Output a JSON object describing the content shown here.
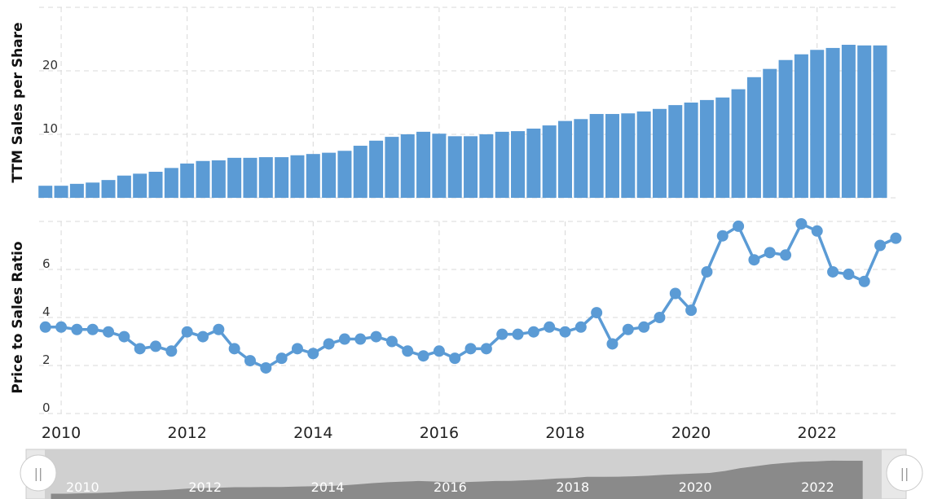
{
  "chart_data": [
    {
      "type": "bar",
      "y_label": "TTM Sales per Share",
      "color": "#5b9bd5",
      "x": [
        2009.75,
        2010,
        2010.25,
        2010.5,
        2010.75,
        2011,
        2011.25,
        2011.5,
        2011.75,
        2012,
        2012.25,
        2012.5,
        2012.75,
        2013,
        2013.25,
        2013.5,
        2013.75,
        2014,
        2014.25,
        2014.5,
        2014.75,
        2015,
        2015.25,
        2015.5,
        2015.75,
        2016,
        2016.25,
        2016.5,
        2016.75,
        2017,
        2017.25,
        2017.5,
        2017.75,
        2018,
        2018.25,
        2018.5,
        2018.75,
        2019,
        2019.25,
        2019.5,
        2019.75,
        2020,
        2020.25,
        2020.5,
        2020.75,
        2021,
        2021.25,
        2021.5,
        2021.75,
        2022,
        2022.25,
        2022.5,
        2022.75,
        2023
      ],
      "values": [
        1.9,
        1.9,
        2.2,
        2.4,
        2.8,
        3.5,
        3.8,
        4.1,
        4.7,
        5.4,
        5.8,
        5.9,
        6.3,
        6.3,
        6.4,
        6.4,
        6.7,
        6.9,
        7.1,
        7.4,
        8.2,
        9.0,
        9.6,
        10.0,
        10.4,
        10.1,
        9.7,
        9.7,
        10.0,
        10.4,
        10.5,
        10.9,
        11.4,
        12.1,
        12.4,
        13.2,
        13.2,
        13.3,
        13.6,
        14.0,
        14.6,
        15.0,
        15.4,
        15.8,
        17.1,
        19.0,
        20.3,
        21.7,
        22.6,
        23.3,
        23.6,
        24.1,
        24.0,
        24.0
      ],
      "xlim": [
        2009.65,
        2023.31
      ],
      "xticks": [
        2010,
        2012,
        2014,
        2016,
        2018,
        2020,
        2022
      ],
      "ylim": [
        0,
        30
      ],
      "yticks": [
        0,
        10,
        20
      ],
      "grid": true
    },
    {
      "type": "line",
      "y_label": "Price to Sales Ratio",
      "color": "#5b9bd5",
      "x": [
        2009.75,
        2010,
        2010.25,
        2010.5,
        2010.75,
        2011,
        2011.25,
        2011.5,
        2011.75,
        2012,
        2012.25,
        2012.5,
        2012.75,
        2013,
        2013.25,
        2013.5,
        2013.75,
        2014,
        2014.25,
        2014.5,
        2014.75,
        2015,
        2015.25,
        2015.5,
        2015.75,
        2016,
        2016.25,
        2016.5,
        2016.75,
        2017,
        2017.25,
        2017.5,
        2017.75,
        2018,
        2018.25,
        2018.5,
        2018.75,
        2019,
        2019.25,
        2019.5,
        2019.75,
        2020,
        2020.25,
        2020.5,
        2020.75,
        2021,
        2021.25,
        2021.5,
        2021.75,
        2022,
        2022.25,
        2022.5,
        2022.75,
        2023,
        2023.25
      ],
      "values": [
        3.6,
        3.6,
        3.5,
        3.5,
        3.4,
        3.2,
        2.7,
        2.8,
        2.6,
        3.4,
        3.2,
        3.5,
        2.7,
        2.2,
        1.9,
        2.3,
        2.7,
        2.5,
        2.9,
        3.1,
        3.1,
        3.2,
        3.0,
        2.6,
        2.4,
        2.6,
        2.3,
        2.7,
        2.7,
        3.3,
        3.3,
        3.4,
        3.6,
        3.4,
        3.6,
        4.2,
        2.9,
        3.5,
        3.6,
        4.0,
        5.0,
        4.3,
        5.9,
        7.4,
        7.8,
        6.4,
        6.7,
        6.6,
        7.9,
        7.6,
        5.9,
        5.8,
        5.5,
        7.0,
        7.3
      ],
      "xlim": [
        2009.65,
        2023.31
      ],
      "xticks": [
        2010,
        2012,
        2014,
        2016,
        2018,
        2020,
        2022
      ],
      "ylim": [
        0,
        8
      ],
      "yticks": [
        0,
        2,
        4,
        6
      ],
      "grid": true
    }
  ]
}
